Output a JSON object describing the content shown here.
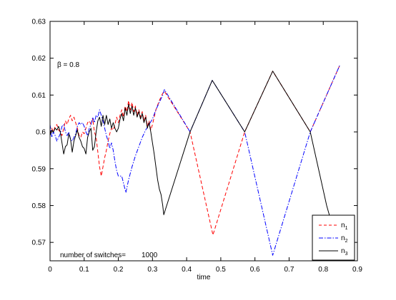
{
  "chart_data": {
    "type": "line",
    "title": "",
    "xlabel": "time",
    "ylabel": "",
    "xlim": [
      0,
      0.9
    ],
    "ylim": [
      0.565,
      0.63
    ],
    "xticks": [
      0,
      0.1,
      0.2,
      0.3,
      0.4,
      0.5,
      0.6,
      0.7,
      0.8,
      0.9
    ],
    "yticks": [
      0.57,
      0.58,
      0.59,
      0.6,
      0.61,
      0.62,
      0.63
    ],
    "xtick_labels": [
      "0",
      "0.1",
      "0.2",
      "0.3",
      "0.4",
      "0.5",
      "0.6",
      "0.7",
      "0.8",
      "0.9"
    ],
    "ytick_labels": [
      "0.57",
      "0.58",
      "0.59",
      "0.6",
      "0.61",
      "0.62",
      "0.63"
    ],
    "grid": false,
    "legend_position": "bottom-right",
    "series": [
      {
        "name": "n1",
        "label_base": "n",
        "label_sub": "1",
        "color": "#ff0000",
        "dash": "dashed",
        "points": [
          [
            0.0,
            0.5995
          ],
          [
            0.005,
            0.601
          ],
          [
            0.01,
            0.6
          ],
          [
            0.015,
            0.6015
          ],
          [
            0.02,
            0.602
          ],
          [
            0.025,
            0.6005
          ],
          [
            0.03,
            0.6
          ],
          [
            0.035,
            0.599
          ],
          [
            0.04,
            0.601
          ],
          [
            0.045,
            0.603
          ],
          [
            0.05,
            0.602
          ],
          [
            0.055,
            0.6035
          ],
          [
            0.06,
            0.6045
          ],
          [
            0.065,
            0.603
          ],
          [
            0.07,
            0.604
          ],
          [
            0.075,
            0.6025
          ],
          [
            0.08,
            0.601
          ],
          [
            0.085,
            0.599
          ],
          [
            0.09,
            0.5985
          ],
          [
            0.095,
            0.6
          ],
          [
            0.1,
            0.5995
          ],
          [
            0.105,
            0.601
          ],
          [
            0.11,
            0.6025
          ],
          [
            0.115,
            0.603
          ],
          [
            0.12,
            0.602
          ],
          [
            0.125,
            0.6035
          ],
          [
            0.13,
            0.6
          ],
          [
            0.135,
            0.5985
          ],
          [
            0.14,
            0.5945
          ],
          [
            0.145,
            0.5905
          ],
          [
            0.15,
            0.588
          ],
          [
            0.155,
            0.5905
          ],
          [
            0.16,
            0.593
          ],
          [
            0.165,
            0.595
          ],
          [
            0.17,
            0.5975
          ],
          [
            0.175,
            0.5995
          ],
          [
            0.18,
            0.601
          ],
          [
            0.185,
            0.6005
          ],
          [
            0.19,
            0.602
          ],
          [
            0.195,
            0.604
          ],
          [
            0.2,
            0.6025
          ],
          [
            0.205,
            0.6045
          ],
          [
            0.21,
            0.606
          ],
          [
            0.215,
            0.604
          ],
          [
            0.22,
            0.607
          ],
          [
            0.225,
            0.6055
          ],
          [
            0.23,
            0.6085
          ],
          [
            0.235,
            0.606
          ],
          [
            0.24,
            0.608
          ],
          [
            0.245,
            0.6055
          ],
          [
            0.25,
            0.607
          ],
          [
            0.255,
            0.6045
          ],
          [
            0.26,
            0.606
          ],
          [
            0.265,
            0.604
          ],
          [
            0.27,
            0.6055
          ],
          [
            0.275,
            0.603
          ],
          [
            0.28,
            0.6045
          ],
          [
            0.285,
            0.6015
          ],
          [
            0.29,
            0.603
          ],
          [
            0.295,
            0.6005
          ],
          [
            0.3,
            0.602
          ],
          [
            0.31,
            0.606
          ],
          [
            0.32,
            0.6085
          ],
          [
            0.33,
            0.6105
          ],
          [
            0.335,
            0.611
          ],
          [
            0.41,
            0.6
          ],
          [
            0.477,
            0.572
          ],
          [
            0.57,
            0.6
          ],
          [
            0.652,
            0.6165
          ],
          [
            0.762,
            0.6
          ],
          [
            0.848,
            0.618
          ]
        ]
      },
      {
        "name": "n2",
        "label_base": "n",
        "label_sub": "2",
        "color": "#0000ff",
        "dash": "dashdot",
        "points": [
          [
            0.0,
            0.602
          ],
          [
            0.005,
            0.5985
          ],
          [
            0.01,
            0.6
          ],
          [
            0.015,
            0.599
          ],
          [
            0.02,
            0.5975
          ],
          [
            0.025,
            0.5985
          ],
          [
            0.03,
            0.5995
          ],
          [
            0.035,
            0.6015
          ],
          [
            0.04,
            0.602
          ],
          [
            0.045,
            0.6
          ],
          [
            0.05,
            0.599
          ],
          [
            0.055,
            0.6
          ],
          [
            0.06,
            0.598
          ],
          [
            0.065,
            0.5975
          ],
          [
            0.07,
            0.5985
          ],
          [
            0.075,
            0.5995
          ],
          [
            0.08,
            0.6015
          ],
          [
            0.085,
            0.6025
          ],
          [
            0.09,
            0.602
          ],
          [
            0.095,
            0.6025
          ],
          [
            0.1,
            0.6015
          ],
          [
            0.105,
            0.6
          ],
          [
            0.11,
            0.599
          ],
          [
            0.115,
            0.601
          ],
          [
            0.12,
            0.602
          ],
          [
            0.125,
            0.604
          ],
          [
            0.13,
            0.6025
          ],
          [
            0.135,
            0.6045
          ],
          [
            0.14,
            0.604
          ],
          [
            0.145,
            0.606
          ],
          [
            0.15,
            0.6045
          ],
          [
            0.155,
            0.603
          ],
          [
            0.16,
            0.601
          ],
          [
            0.165,
            0.599
          ],
          [
            0.17,
            0.5975
          ],
          [
            0.175,
            0.5955
          ],
          [
            0.18,
            0.597
          ],
          [
            0.185,
            0.595
          ],
          [
            0.19,
            0.592
          ],
          [
            0.195,
            0.5895
          ],
          [
            0.2,
            0.588
          ],
          [
            0.21,
            0.588
          ],
          [
            0.218,
            0.585
          ],
          [
            0.222,
            0.5835
          ],
          [
            0.23,
            0.587
          ],
          [
            0.24,
            0.5905
          ],
          [
            0.25,
            0.5935
          ],
          [
            0.26,
            0.596
          ],
          [
            0.27,
            0.5985
          ],
          [
            0.28,
            0.6005
          ],
          [
            0.29,
            0.602
          ],
          [
            0.3,
            0.6035
          ],
          [
            0.31,
            0.606
          ],
          [
            0.32,
            0.608
          ],
          [
            0.33,
            0.61
          ],
          [
            0.335,
            0.6115
          ],
          [
            0.41,
            0.6
          ],
          [
            0.475,
            0.614
          ],
          [
            0.57,
            0.6
          ],
          [
            0.652,
            0.5665
          ],
          [
            0.762,
            0.6
          ],
          [
            0.848,
            0.618
          ]
        ]
      },
      {
        "name": "n3",
        "label_base": "n",
        "label_sub": "3",
        "color": "#000000",
        "dash": "solid",
        "points": [
          [
            0.0,
            0.599
          ],
          [
            0.005,
            0.6005
          ],
          [
            0.01,
            0.6
          ],
          [
            0.015,
            0.601
          ],
          [
            0.02,
            0.6005
          ],
          [
            0.025,
            0.6015
          ],
          [
            0.03,
            0.6
          ],
          [
            0.035,
            0.597
          ],
          [
            0.04,
            0.594
          ],
          [
            0.045,
            0.596
          ],
          [
            0.05,
            0.5965
          ],
          [
            0.055,
            0.5995
          ],
          [
            0.06,
            0.598
          ],
          [
            0.065,
            0.5945
          ],
          [
            0.07,
            0.5975
          ],
          [
            0.075,
            0.599
          ],
          [
            0.08,
            0.6005
          ],
          [
            0.085,
            0.5985
          ],
          [
            0.09,
            0.5975
          ],
          [
            0.095,
            0.596
          ],
          [
            0.1,
            0.5955
          ],
          [
            0.105,
            0.594
          ],
          [
            0.11,
            0.5985
          ],
          [
            0.115,
            0.6
          ],
          [
            0.12,
            0.601
          ],
          [
            0.125,
            0.595
          ],
          [
            0.13,
            0.596
          ],
          [
            0.135,
            0.6
          ],
          [
            0.14,
            0.603
          ],
          [
            0.145,
            0.604
          ],
          [
            0.15,
            0.6015
          ],
          [
            0.155,
            0.6045
          ],
          [
            0.16,
            0.602
          ],
          [
            0.165,
            0.6045
          ],
          [
            0.17,
            0.602
          ],
          [
            0.175,
            0.6035
          ],
          [
            0.18,
            0.601
          ],
          [
            0.185,
            0.6025
          ],
          [
            0.19,
            0.601
          ],
          [
            0.195,
            0.6
          ],
          [
            0.2,
            0.601
          ],
          [
            0.205,
            0.6035
          ],
          [
            0.21,
            0.605
          ],
          [
            0.215,
            0.603
          ],
          [
            0.22,
            0.6065
          ],
          [
            0.225,
            0.6045
          ],
          [
            0.23,
            0.6075
          ],
          [
            0.235,
            0.605
          ],
          [
            0.24,
            0.607
          ],
          [
            0.245,
            0.6045
          ],
          [
            0.25,
            0.6065
          ],
          [
            0.255,
            0.604
          ],
          [
            0.26,
            0.6055
          ],
          [
            0.265,
            0.6035
          ],
          [
            0.27,
            0.605
          ],
          [
            0.275,
            0.6025
          ],
          [
            0.28,
            0.604
          ],
          [
            0.285,
            0.601
          ],
          [
            0.29,
            0.6025
          ],
          [
            0.295,
            0.6
          ],
          [
            0.3,
            0.597
          ],
          [
            0.305,
            0.594
          ],
          [
            0.31,
            0.5905
          ],
          [
            0.315,
            0.587
          ],
          [
            0.32,
            0.5845
          ],
          [
            0.325,
            0.583
          ],
          [
            0.33,
            0.58
          ],
          [
            0.333,
            0.5775
          ],
          [
            0.41,
            0.6
          ],
          [
            0.475,
            0.614
          ],
          [
            0.57,
            0.6
          ],
          [
            0.652,
            0.6165
          ],
          [
            0.762,
            0.6
          ],
          [
            0.81,
            0.58
          ],
          [
            0.833,
            0.5725
          ]
        ]
      }
    ],
    "annotations": [
      {
        "text_prefix": "β",
        "text_suffix": " =  0.8"
      },
      {
        "text": "number of switches=",
        "value": "1000"
      }
    ]
  }
}
